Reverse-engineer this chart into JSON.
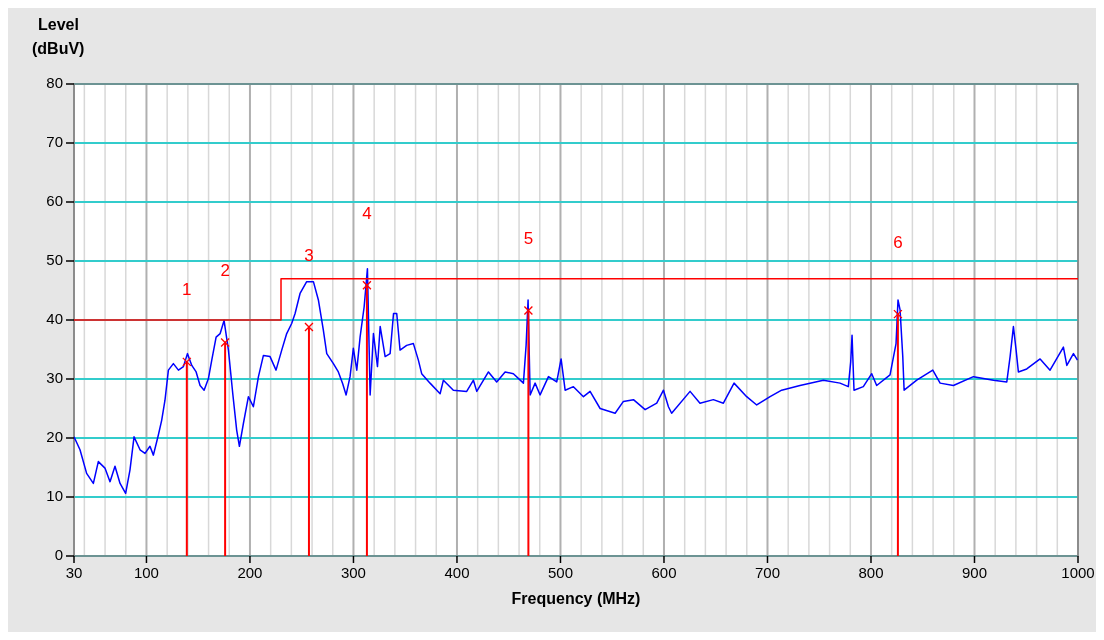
{
  "chart_data": {
    "type": "line",
    "xlabel": "Frequency (MHz)",
    "ylabel": "Level\n(dBuV)",
    "xlim": [
      30,
      1000
    ],
    "ylim": [
      0,
      80
    ],
    "xticks": [
      30,
      {
        "value": 40,
        "label": null
      },
      {
        "value": 60,
        "label": null
      },
      {
        "value": 80,
        "label": null
      },
      100,
      {
        "value": 120,
        "label": null
      },
      {
        "value": 140,
        "label": null
      },
      {
        "value": 160,
        "label": null
      },
      {
        "value": 180,
        "label": null
      },
      200,
      {
        "value": 220,
        "label": null
      },
      {
        "value": 240,
        "label": null
      },
      {
        "value": 260,
        "label": null
      },
      {
        "value": 280,
        "label": null
      },
      300,
      {
        "value": 320,
        "label": null
      },
      {
        "value": 340,
        "label": null
      },
      {
        "value": 360,
        "label": null
      },
      {
        "value": 380,
        "label": null
      },
      400,
      {
        "value": 420,
        "label": null
      },
      {
        "value": 440,
        "label": null
      },
      {
        "value": 460,
        "label": null
      },
      {
        "value": 480,
        "label": null
      },
      500,
      {
        "value": 520,
        "label": null
      },
      {
        "value": 540,
        "label": null
      },
      {
        "value": 560,
        "label": null
      },
      {
        "value": 580,
        "label": null
      },
      600,
      {
        "value": 620,
        "label": null
      },
      {
        "value": 640,
        "label": null
      },
      {
        "value": 660,
        "label": null
      },
      {
        "value": 680,
        "label": null
      },
      700,
      {
        "value": 720,
        "label": null
      },
      {
        "value": 740,
        "label": null
      },
      {
        "value": 760,
        "label": null
      },
      {
        "value": 780,
        "label": null
      },
      800,
      {
        "value": 820,
        "label": null
      },
      {
        "value": 840,
        "label": null
      },
      {
        "value": 860,
        "label": null
      },
      {
        "value": 880,
        "label": null
      },
      900,
      {
        "value": 920,
        "label": null
      },
      {
        "value": 940,
        "label": null
      },
      {
        "value": 960,
        "label": null
      },
      {
        "value": 980,
        "label": null
      },
      1000
    ],
    "yticks": [
      0,
      10,
      20,
      30,
      40,
      50,
      60,
      70,
      80
    ],
    "grid": true,
    "series": [
      {
        "color": "#0000ff",
        "x": [
          30,
          35.8,
          42.2,
          48.7,
          53.5,
          59.9,
          64.8,
          69.6,
          74.5,
          79.9,
          84.1,
          88,
          93.8,
          98.6,
          103.4,
          106.7,
          111.5,
          114.7,
          117.9,
          121.2,
          126,
          130.9,
          135.7,
          139.6,
          143.8,
          148,
          151.8,
          155.7,
          159.9,
          163.1,
          167.3,
          171.2,
          175,
          179.2,
          183.4,
          187.2,
          189.8,
          193.7,
          198.5,
          203.3,
          208.2,
          213,
          219.4,
          225.2,
          230.7,
          235.5,
          240.3,
          243.6,
          248.4,
          254.8,
          261.3,
          266.1,
          270.9,
          274.2,
          280.6,
          285.4,
          289.6,
          292.9,
          296.7,
          299.9,
          303.2,
          306.4,
          310.3,
          313.5,
          316.1,
          319.3,
          323.2,
          325.8,
          330.6,
          335.4,
          338.7,
          341.8,
          345,
          351.4,
          357.9,
          362.7,
          365.9,
          374,
          383.7,
          386.9,
          396.5,
          409.4,
          415.9,
          419.1,
          430.4,
          438.4,
          446.5,
          454.5,
          464.2,
          466.8,
          468.7,
          470.7,
          475.5,
          480.3,
          488.4,
          496.4,
          500.6,
          504.5,
          512.5,
          522.2,
          528.6,
          538.3,
          552.8,
          560.8,
          570.5,
          581.8,
          593,
          599.5,
          604.3,
          607.4,
          625.2,
          634.8,
          647.7,
          657.4,
          667.7,
          679.9,
          689.6,
          702.5,
          713.7,
          731.4,
          754,
          770.1,
          778.1,
          780.4,
          781.7,
          783.6,
          792.6,
          800.7,
          805.5,
          818.4,
          824.2,
          826.1,
          828.1,
          830.7,
          832,
          844.2,
          859.7,
          866.8,
          879.6,
          899,
          918.3,
          931.2,
          934.4,
          937.6,
          940.2,
          942.4,
          950.5,
          963.4,
          973,
          985.9,
          989.2,
          995.6,
          999.5
        ],
        "values": [
          20.2,
          18,
          14,
          12.3,
          16,
          14.9,
          12.6,
          15.2,
          12.3,
          10.6,
          14.6,
          20.2,
          18,
          17.4,
          18.6,
          17.1,
          20.5,
          23,
          26.4,
          31.5,
          32.6,
          31.5,
          32.1,
          34.3,
          32.3,
          31.2,
          28.9,
          28.1,
          30.1,
          33.2,
          37.1,
          37.7,
          39.9,
          34.9,
          27.5,
          21.3,
          18.6,
          22.5,
          27,
          25.3,
          30.4,
          34,
          33.8,
          31.5,
          34.9,
          37.7,
          39.4,
          41.1,
          44.5,
          46.5,
          46.5,
          43.4,
          38.3,
          34.3,
          32.6,
          31.2,
          29.2,
          27.3,
          30.4,
          35.2,
          31.5,
          37.1,
          42.2,
          48.7,
          27.3,
          37.7,
          32.1,
          38.9,
          33.8,
          34.3,
          41.1,
          41.1,
          34.9,
          35.7,
          36,
          33.2,
          30.9,
          29.3,
          27.5,
          29.8,
          28.1,
          27.9,
          29.8,
          27.9,
          31.2,
          29.5,
          31.2,
          30.9,
          29.3,
          35.7,
          43.4,
          27.3,
          29.3,
          27.3,
          30.4,
          29.5,
          33.4,
          28.1,
          28.7,
          27,
          27.9,
          25,
          24.2,
          26.2,
          26.5,
          24.8,
          25.9,
          28.1,
          25.3,
          24.2,
          27.9,
          25.9,
          26.5,
          25.9,
          29.3,
          27,
          25.6,
          27,
          28.1,
          28.9,
          29.8,
          29.3,
          28.7,
          32.9,
          37.4,
          28.1,
          28.7,
          30.9,
          28.9,
          30.7,
          36,
          43.4,
          41.7,
          33.8,
          28.1,
          29.8,
          31.5,
          29.3,
          28.9,
          30.4,
          29.8,
          29.5,
          33.8,
          38.9,
          34.9,
          31.2,
          31.7,
          33.4,
          31.5,
          35.4,
          32.3,
          34.3,
          33.2
        ]
      },
      {
        "type": "step",
        "color": "#ff0000",
        "x": [
          30,
          230,
          1000
        ],
        "values": [
          40,
          47,
          47
        ]
      },
      {
        "type": "lollipop",
        "color": "#ff0000",
        "marker": "cross",
        "x": [
          139,
          176,
          257,
          313,
          469,
          826
        ],
        "values": [
          32.9,
          36.2,
          38.8,
          45.9,
          41.6,
          41
        ]
      }
    ],
    "annotations": [
      "1",
      "2",
      "3",
      "4",
      "5",
      "6"
    ]
  }
}
